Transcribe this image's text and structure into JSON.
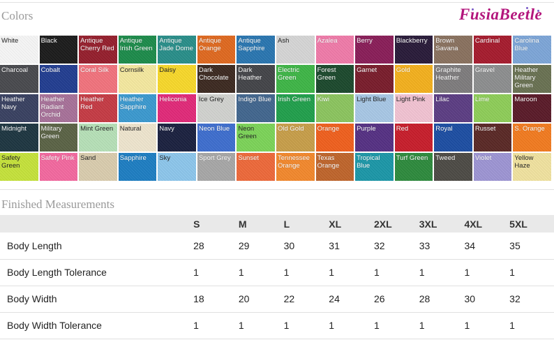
{
  "colors_title": "Colors",
  "brand": "FusiaBeetle",
  "swatches": [
    {
      "name": "White",
      "color": "#f7f7f7",
      "dark": true
    },
    {
      "name": "Black",
      "color": "#1d1d1d"
    },
    {
      "name": "Antique Cherry Red",
      "color": "#96202e"
    },
    {
      "name": "Antique Irish Green",
      "color": "#1e8c4c"
    },
    {
      "name": "Antique Jade Dome",
      "color": "#2a8f8a"
    },
    {
      "name": "Antique Orange",
      "color": "#e06a21"
    },
    {
      "name": "Antique Sapphire",
      "color": "#2b77b1"
    },
    {
      "name": "Ash",
      "color": "#d6d6d6",
      "dark": true
    },
    {
      "name": "Azalea",
      "color": "#f07caa"
    },
    {
      "name": "Berry",
      "color": "#8a1f5a"
    },
    {
      "name": "Blackberry",
      "color": "#2a1c3a"
    },
    {
      "name": "Brown Savana",
      "color": "#8a7260"
    },
    {
      "name": "Cardinal",
      "color": "#a71d2f"
    },
    {
      "name": "Carolina Blue",
      "color": "#7ea7d8"
    },
    {
      "name": "Charcoal",
      "color": "#4a4b4f"
    },
    {
      "name": "Cobalt",
      "color": "#233e91"
    },
    {
      "name": "Coral Silk",
      "color": "#f2747e"
    },
    {
      "name": "Cornsilk",
      "color": "#f5e9a0",
      "dark": true
    },
    {
      "name": "Daisy",
      "color": "#f8d92c",
      "dark": true
    },
    {
      "name": "Dark Chocolate",
      "color": "#3d2b22"
    },
    {
      "name": "Dark Heather",
      "color": "#45464a"
    },
    {
      "name": "Electric Green",
      "color": "#3fb648"
    },
    {
      "name": "Forest Green",
      "color": "#1d4a2e"
    },
    {
      "name": "Garnet",
      "color": "#7a1e2d"
    },
    {
      "name": "Gold",
      "color": "#f4b11f"
    },
    {
      "name": "Graphite Heather",
      "color": "#7f7d7e"
    },
    {
      "name": "Gravel",
      "color": "#8e8f90"
    },
    {
      "name": "Heather Military Green",
      "color": "#6a7253"
    },
    {
      "name": "Heather Navy",
      "color": "#3a4262"
    },
    {
      "name": "Heather Radiant Orchid",
      "color": "#a8729a"
    },
    {
      "name": "Heather Red",
      "color": "#c63c46"
    },
    {
      "name": "Heather Sapphire",
      "color": "#3c9ad0"
    },
    {
      "name": "Heliconia",
      "color": "#e22b7a"
    },
    {
      "name": "Ice Grey",
      "color": "#d2d3d0",
      "dark": true
    },
    {
      "name": "Indigo Blue",
      "color": "#43678f"
    },
    {
      "name": "Irish Green",
      "color": "#22a04d"
    },
    {
      "name": "Kiwi",
      "color": "#8cc560"
    },
    {
      "name": "Light Blue",
      "color": "#a9c8e6",
      "dark": true
    },
    {
      "name": "Light Pink",
      "color": "#f2c4d3",
      "dark": true
    },
    {
      "name": "Lilac",
      "color": "#5d3e84"
    },
    {
      "name": "Lime",
      "color": "#8fce5a"
    },
    {
      "name": "Maroon",
      "color": "#5b1c2a"
    },
    {
      "name": "Midnight",
      "color": "#1f3742"
    },
    {
      "name": "Military Green",
      "color": "#5c6447"
    },
    {
      "name": "Mint Green",
      "color": "#b7e1b8",
      "dark": true
    },
    {
      "name": "Natural",
      "color": "#efe6cf",
      "dark": true
    },
    {
      "name": "Navy",
      "color": "#1c2240"
    },
    {
      "name": "Neon Blue",
      "color": "#3f6fcf"
    },
    {
      "name": "Neon Green",
      "color": "#7dd45a",
      "dark": true
    },
    {
      "name": "Old Gold",
      "color": "#c89f4b"
    },
    {
      "name": "Orange",
      "color": "#f0611f"
    },
    {
      "name": "Purple",
      "color": "#563284"
    },
    {
      "name": "Red",
      "color": "#c81f2d"
    },
    {
      "name": "Royal",
      "color": "#1e4fa3"
    },
    {
      "name": "Russet",
      "color": "#5b2a27"
    },
    {
      "name": "S. Orange",
      "color": "#f27c21"
    },
    {
      "name": "Safety Green",
      "color": "#c6e33c",
      "dark": true
    },
    {
      "name": "Safety Pink",
      "color": "#f46aa0"
    },
    {
      "name": "Sand",
      "color": "#dacdaf",
      "dark": true
    },
    {
      "name": "Sapphire",
      "color": "#1f7fc3"
    },
    {
      "name": "Sky",
      "color": "#8ec7ec",
      "dark": true
    },
    {
      "name": "Sport Grey",
      "color": "#a8a8a8"
    },
    {
      "name": "Sunset",
      "color": "#ee6a3b"
    },
    {
      "name": "Tennessee Orange",
      "color": "#f3892e"
    },
    {
      "name": "Texas Orange",
      "color": "#c0662d"
    },
    {
      "name": "Tropical Blue",
      "color": "#1d98a9"
    },
    {
      "name": "Turf Green",
      "color": "#2f8b3e"
    },
    {
      "name": "Tweed",
      "color": "#4e4c47"
    },
    {
      "name": "Violet",
      "color": "#9e96d4"
    },
    {
      "name": "Yellow Haze",
      "color": "#f1e3a0",
      "dark": true
    }
  ],
  "measurements_title": "Finished Measurements",
  "sizes": [
    "S",
    "M",
    "L",
    "XL",
    "2XL",
    "3XL",
    "4XL",
    "5XL"
  ],
  "rows": [
    {
      "label": "Body Length",
      "values": [
        "28",
        "29",
        "30",
        "31",
        "32",
        "33",
        "34",
        "35"
      ]
    },
    {
      "label": "Body Length Tolerance",
      "values": [
        "1",
        "1",
        "1",
        "1",
        "1",
        "1",
        "1",
        "1"
      ]
    },
    {
      "label": "Body Width",
      "values": [
        "18",
        "20",
        "22",
        "24",
        "26",
        "28",
        "30",
        "32"
      ]
    },
    {
      "label": "Body Width Tolerance",
      "values": [
        "1",
        "1",
        "1",
        "1",
        "1",
        "1",
        "1",
        "1"
      ]
    }
  ]
}
